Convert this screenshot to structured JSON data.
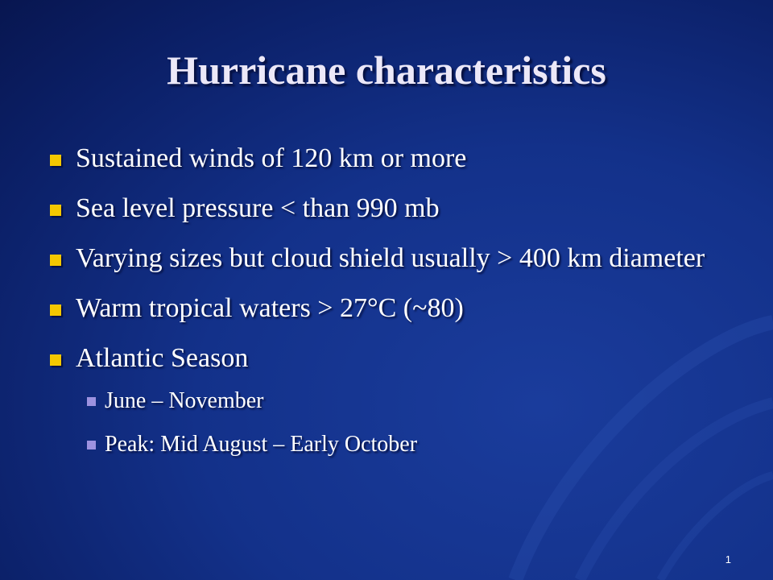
{
  "slide": {
    "title": "Hurricane characteristics",
    "bullets": [
      {
        "text": "Sustained winds of 120 km or more"
      },
      {
        "text": "Sea level pressure < than 990 mb"
      },
      {
        "text": "Varying sizes but cloud shield usually > 400 km diameter"
      },
      {
        "text": "Warm tropical waters > 27°C (~80)"
      },
      {
        "text": "Atlantic Season",
        "sub": [
          "June – November",
          "Peak: Mid August – Early October"
        ]
      }
    ],
    "page_number": "1"
  }
}
